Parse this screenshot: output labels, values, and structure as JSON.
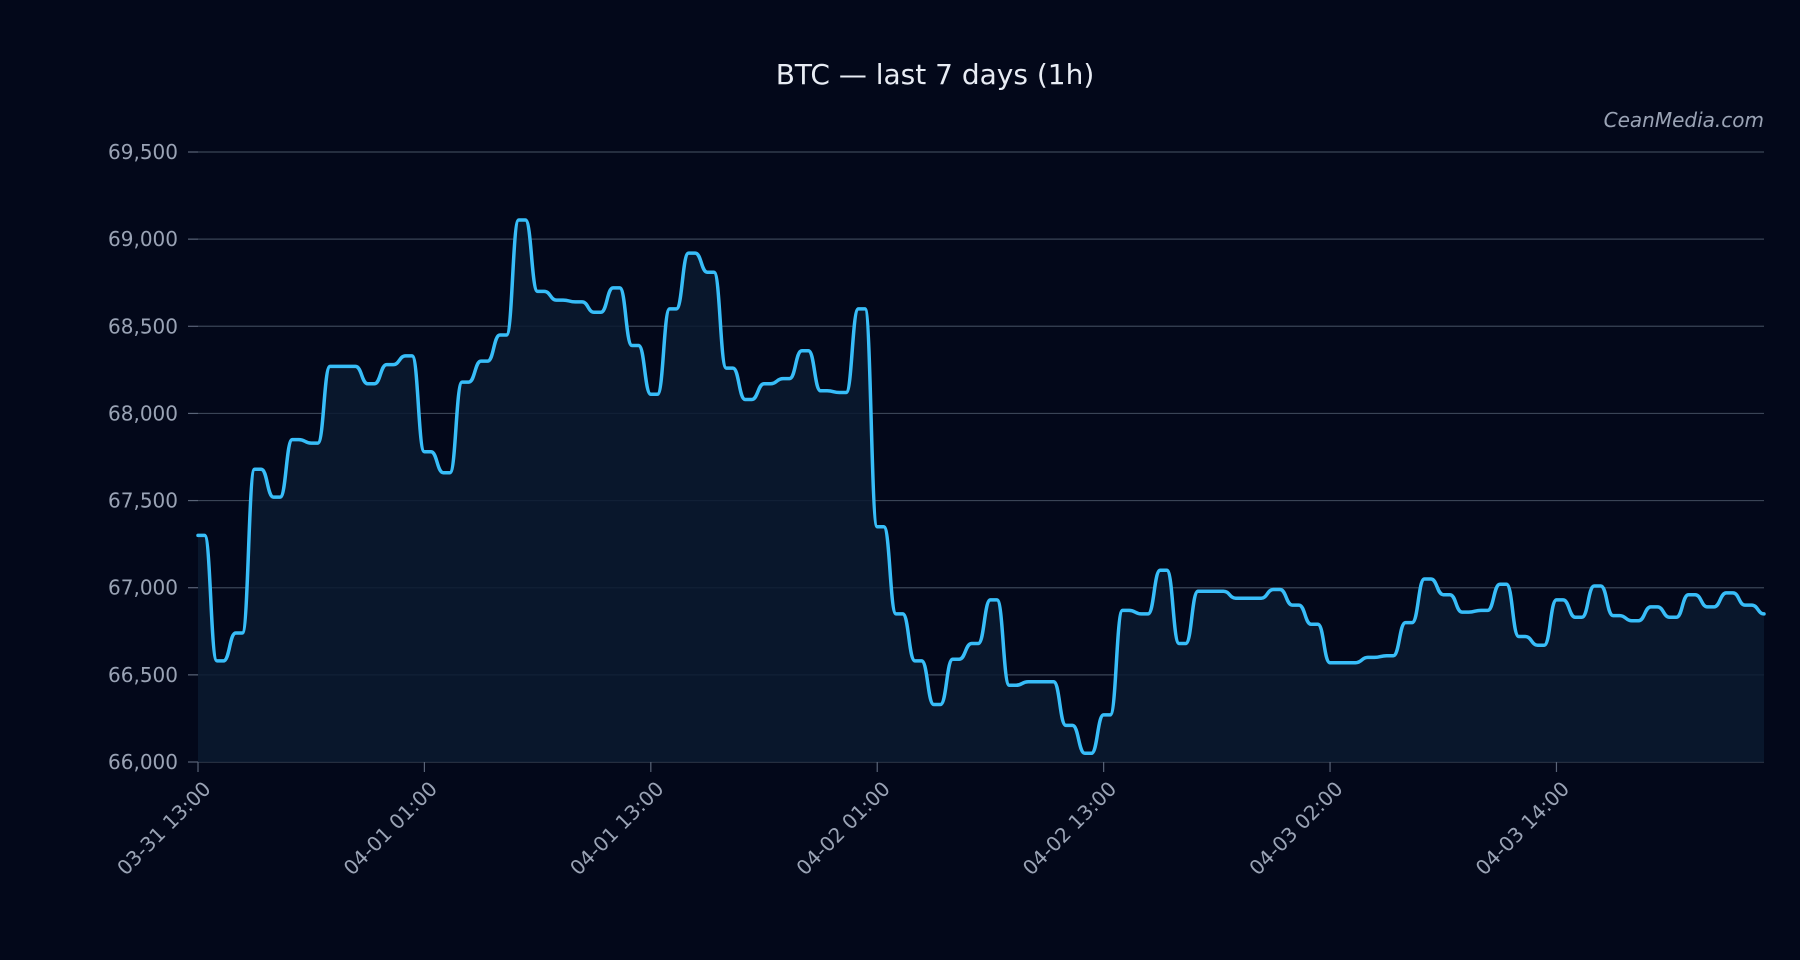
{
  "chart_data": {
    "type": "area",
    "title": "BTC — last 7 days (1h)",
    "watermark": "CeanMedia.com",
    "xlabel": "",
    "ylabel": "",
    "ylim": [
      66000,
      69500
    ],
    "yticks": [
      66000,
      66500,
      67000,
      67500,
      68000,
      68500,
      69000,
      69500
    ],
    "ytick_labels": [
      "66,000",
      "66,500",
      "67,000",
      "67,500",
      "68,000",
      "68,500",
      "69,000",
      "69,500"
    ],
    "xticks": [
      {
        "hour": 0,
        "label": "03-31 13:00"
      },
      {
        "hour": 12,
        "label": "04-01 01:00"
      },
      {
        "hour": 24,
        "label": "04-01 13:00"
      },
      {
        "hour": 36,
        "label": "04-02 01:00"
      },
      {
        "hour": 48,
        "label": "04-02 13:00"
      },
      {
        "hour": 60,
        "label": "04-03 02:00"
      },
      {
        "hour": 72,
        "label": "04-03 14:00"
      }
    ],
    "grid": true,
    "line_color": "#38bdf8",
    "fill_color": "#0a1a30",
    "series": [
      {
        "x": [
          0,
          1,
          2,
          3,
          4,
          5,
          6,
          7,
          8,
          9,
          10,
          11,
          12,
          13,
          14,
          15,
          16,
          17,
          18,
          19,
          20,
          21,
          22,
          23,
          24,
          25,
          26,
          27,
          28,
          29,
          30,
          31,
          32,
          33,
          34,
          35,
          36,
          37,
          38,
          39,
          40,
          41,
          42,
          43,
          44,
          45,
          46,
          47,
          48,
          49,
          50,
          51,
          52,
          53,
          54,
          55,
          56,
          57,
          58,
          59,
          60,
          61,
          62,
          63,
          64,
          65,
          66,
          67,
          68,
          69,
          70,
          71,
          72,
          73,
          74,
          75,
          76,
          77,
          78,
          79,
          80,
          81,
          82,
          83
        ],
        "values": [
          67300,
          66580,
          66740,
          67680,
          67520,
          67850,
          67830,
          68270,
          68270,
          68170,
          68280,
          68330,
          67780,
          67660,
          68180,
          68300,
          68450,
          69110,
          68700,
          68650,
          68640,
          68580,
          68720,
          68390,
          68110,
          68600,
          68920,
          68810,
          68260,
          68080,
          68170,
          68200,
          68360,
          68130,
          68120,
          68600,
          67350,
          66850,
          66580,
          66330,
          66590,
          66680,
          66930,
          66440,
          66460,
          66460,
          66210,
          66050,
          66270,
          66870,
          66850,
          67100,
          66680,
          66980,
          66980,
          66940,
          66940,
          66990,
          66900,
          66790,
          66570,
          66570,
          66600,
          66610,
          66800,
          67050,
          66960,
          66860,
          66870,
          67020,
          66720,
          66670,
          66930,
          66830,
          67010,
          66840,
          66810,
          66890,
          66830,
          66960,
          66890,
          66970,
          66900,
          66850
        ]
      }
    ]
  }
}
